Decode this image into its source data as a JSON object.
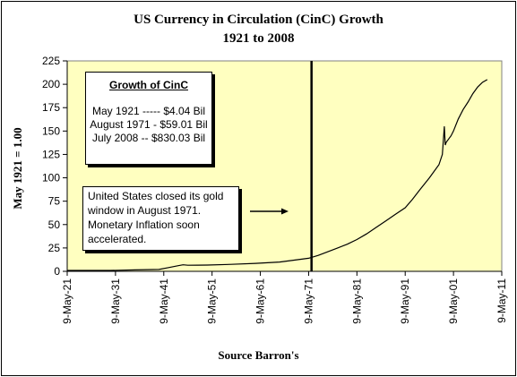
{
  "chart_data": {
    "type": "line",
    "title": "US Currency in Circulation (CinC) Growth",
    "subtitle": "1921 to 2008",
    "xlabel": "Source Barron's",
    "ylabel": "May 1921 = 1.00",
    "ylim": [
      0,
      225
    ],
    "yticks": [
      0,
      25,
      50,
      75,
      100,
      125,
      150,
      175,
      200,
      225
    ],
    "xlim": [
      1921,
      2011
    ],
    "xticks": [
      {
        "x": 1921,
        "label": "9-May-21"
      },
      {
        "x": 1931,
        "label": "9-May-31"
      },
      {
        "x": 1941,
        "label": "9-May-41"
      },
      {
        "x": 1951,
        "label": "9-May-51"
      },
      {
        "x": 1961,
        "label": "9-May-61"
      },
      {
        "x": 1971,
        "label": "9-May-71"
      },
      {
        "x": 1981,
        "label": "9-May-81"
      },
      {
        "x": 1991,
        "label": "9-May-91"
      },
      {
        "x": 2001,
        "label": "9-May-01"
      },
      {
        "x": 2011,
        "label": "9-May-11"
      }
    ],
    "grid": false,
    "vertical_marker_x": 1971.6,
    "series": [
      {
        "x": [
          1921,
          1925,
          1930,
          1935,
          1940,
          1942,
          1944,
          1945,
          1946,
          1948,
          1950,
          1955,
          1960,
          1965,
          1968,
          1971,
          1973,
          1975,
          1977,
          1979,
          1981,
          1983,
          1985,
          1987,
          1989,
          1991,
          1992.5,
          1994,
          1996,
          1998,
          1998.7,
          1999.1,
          1999.3,
          1999.5,
          2000.5,
          2001,
          2002,
          2003,
          2004,
          2005,
          2006,
          2007,
          2008
        ],
        "values": [
          1,
          1,
          1,
          1.5,
          2,
          4,
          6,
          7,
          6.5,
          6.6,
          6.7,
          7.5,
          8.5,
          10,
          12,
          14,
          17,
          21,
          25,
          29,
          34,
          40,
          47,
          54,
          61,
          68,
          77,
          87,
          100,
          114,
          125,
          155,
          135,
          138,
          145,
          150,
          163,
          173,
          181,
          190,
          197,
          202,
          205
        ]
      }
    ]
  },
  "legend_box": {
    "title": "Growth of CinC",
    "lines": [
      "May 1921 -----  $4.04 Bil",
      "August 1971 - $59.01 Bil",
      "July 2008 -- $830.03 Bil"
    ]
  },
  "note": {
    "lines": [
      "United States closed its gold",
      "window in August 1971.",
      "Monetary Inflation soon",
      "accelerated."
    ]
  },
  "colors": {
    "plot_background": "#ffffc0",
    "line": "#000000"
  }
}
